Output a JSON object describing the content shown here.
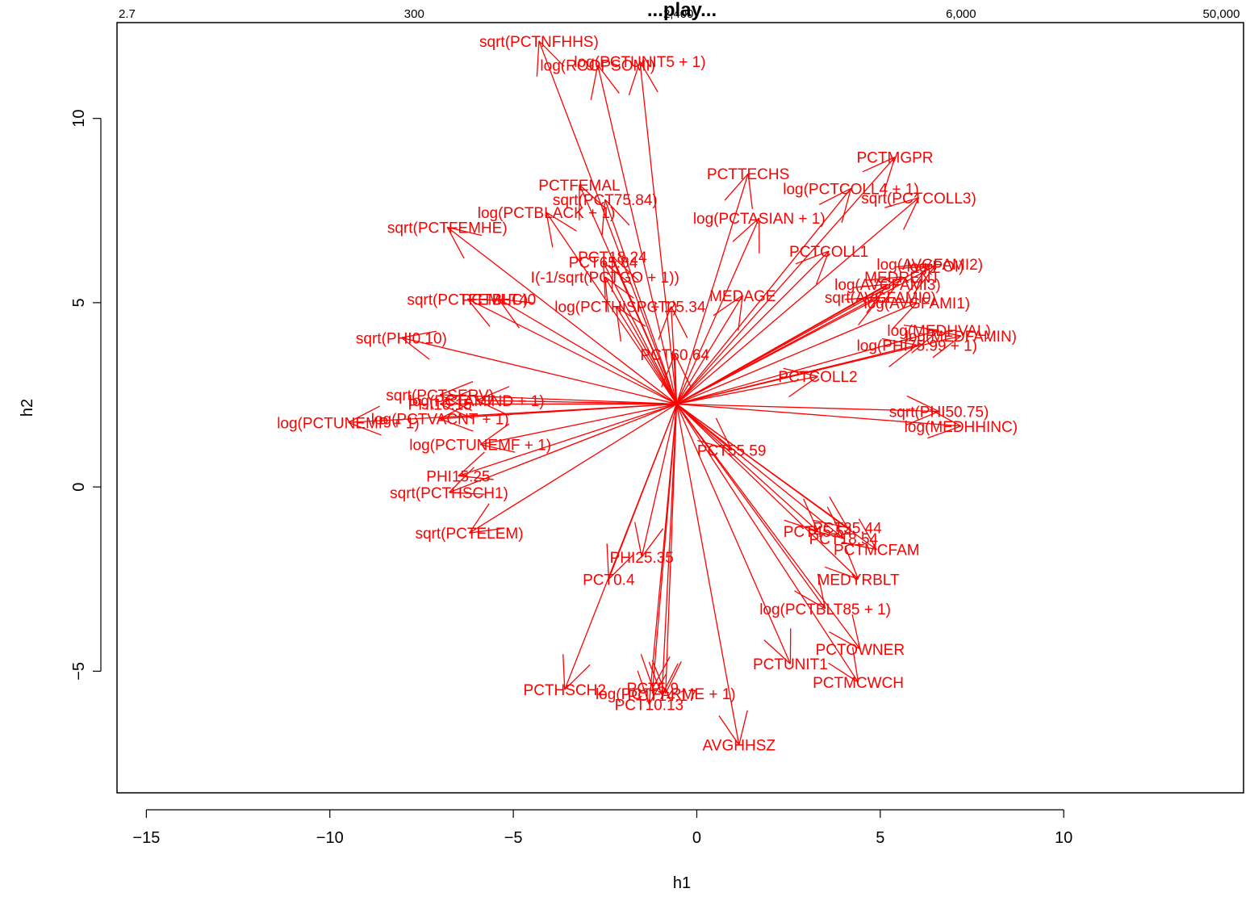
{
  "chart_data": {
    "type": "biplot",
    "title": "...play...",
    "xlabel": "h1",
    "ylabel": "h2",
    "xlim": [
      -15.8,
      14.9
    ],
    "ylim": [
      -8.3,
      12.6
    ],
    "x_ticks": [
      -15,
      -10,
      -5,
      0,
      5,
      10
    ],
    "y_ticks": [
      -5,
      0,
      5,
      10
    ],
    "top_ticks": [
      {
        "label": "2.7",
        "x": -15.8
      },
      {
        "label": "300",
        "x": -7.7
      },
      {
        "label": "2,400",
        "x": -0.5
      },
      {
        "label": "6,000",
        "x": 7.2
      },
      {
        "label": "50,000",
        "x": 14.8
      }
    ],
    "origin": [
      -0.55,
      2.25
    ],
    "color": "#ff0000",
    "vectors": [
      {
        "label": "sqrt(PCTNFHHS)",
        "x": -4.3,
        "y": 12.1
      },
      {
        "label": "log(PCTUNIT5 + 1)",
        "x": -1.55,
        "y": 11.55
      },
      {
        "label": "log(ROOPSOMI)",
        "x": -2.7,
        "y": 11.45
      },
      {
        "label": "PCTMGPR",
        "x": 5.4,
        "y": 8.95
      },
      {
        "label": "PCTTECHS",
        "x": 1.4,
        "y": 8.5
      },
      {
        "label": "log(PCTCOLL4 + 1)",
        "x": 4.2,
        "y": 8.1
      },
      {
        "label": "sqrt(PCTCOLL3)",
        "x": 6.05,
        "y": 7.85
      },
      {
        "label": "PCTFEMAL",
        "x": -3.2,
        "y": 8.2
      },
      {
        "label": "sqrt(PCT75.84)",
        "x": -2.5,
        "y": 7.8
      },
      {
        "label": "log(PCTBLACK + 1)",
        "x": -4.1,
        "y": 7.45
      },
      {
        "label": "log(PCTASIAN + 1)",
        "x": 1.7,
        "y": 7.3
      },
      {
        "label": "sqrt(PCTFEMHE)",
        "x": -6.8,
        "y": 7.05
      },
      {
        "label": "PCTCOLL1",
        "x": 3.6,
        "y": 6.4
      },
      {
        "label": "PCT18.24",
        "x": -2.3,
        "y": 6.25
      },
      {
        "label": "PCT65.84",
        "x": -2.55,
        "y": 6.1
      },
      {
        "label": "log(AVGFAMI2)",
        "x": 6.35,
        "y": 6.05
      },
      {
        "label": "log(POI)",
        "x": 6.5,
        "y": 6.0
      },
      {
        "label": "MEDRENT",
        "x": 5.6,
        "y": 5.7
      },
      {
        "label": "I(-1/sqrt(PCTGO + 1))",
        "x": -2.5,
        "y": 5.7
      },
      {
        "label": "log(AVGFAMI3)",
        "x": 5.2,
        "y": 5.5
      },
      {
        "label": "MEDAGE",
        "x": 1.25,
        "y": 5.2
      },
      {
        "label": "sqrt(PCTFEMHC)",
        "x": -6.25,
        "y": 5.1
      },
      {
        "label": "PCTBLT40",
        "x": -5.4,
        "y": 5.1
      },
      {
        "label": "sqrt(AVGFAMI0)",
        "x": 5.0,
        "y": 5.15
      },
      {
        "label": "log(AVGFAMI1)",
        "x": 6.0,
        "y": 5.0
      },
      {
        "label": "log(PCTHISP + 1)",
        "x": -2.2,
        "y": 4.9
      },
      {
        "label": "PCT25.34",
        "x": -0.7,
        "y": 4.9
      },
      {
        "label": "sqrt(PHI0.10)",
        "x": -8.05,
        "y": 4.05
      },
      {
        "label": "log(MEDHVAL)",
        "x": 6.6,
        "y": 4.25
      },
      {
        "label": "log(MEDFAMIN)",
        "x": 7.2,
        "y": 4.1
      },
      {
        "label": "log(PHI75.99 + 1)",
        "x": 6.0,
        "y": 3.85
      },
      {
        "label": "PCT60.64",
        "x": -0.6,
        "y": 3.6
      },
      {
        "label": "PCTCOLL2",
        "x": 3.3,
        "y": 3.0
      },
      {
        "label": "sqrt(PCTSERV)",
        "x": -7.0,
        "y": 2.5
      },
      {
        "label": "log(PCTAMIND + 1)",
        "x": -6.0,
        "y": 2.35
      },
      {
        "label": "PHI10.15",
        "x": -7.0,
        "y": 2.25
      },
      {
        "label": "sqrt(PHI50.75)",
        "x": 6.6,
        "y": 2.05
      },
      {
        "label": "log(PCTVACNT + 1)",
        "x": -7.0,
        "y": 1.85
      },
      {
        "label": "log(PCTUNEMP + 1)",
        "x": -9.5,
        "y": 1.75
      },
      {
        "label": "log(MEDHHINC)",
        "x": 7.2,
        "y": 1.65
      },
      {
        "label": "log(PCTUNEMF + 1)",
        "x": -5.9,
        "y": 1.15
      },
      {
        "label": "PCT55.59",
        "x": 0.95,
        "y": 1.0
      },
      {
        "label": "PHI15.25",
        "x": -6.5,
        "y": 0.3
      },
      {
        "label": "sqrt(PCTHSCH1)",
        "x": -6.75,
        "y": -0.15
      },
      {
        "label": "PCT35.44",
        "x": 4.1,
        "y": -1.1
      },
      {
        "label": "PCT45.54",
        "x": 3.3,
        "y": -1.2
      },
      {
        "label": "PCT18.54",
        "x": 4.0,
        "y": -1.4
      },
      {
        "label": "sqrt(PCTELEM)",
        "x": -6.2,
        "y": -1.25
      },
      {
        "label": "PCTMCFAM",
        "x": 4.9,
        "y": -1.7
      },
      {
        "label": "PHI25.35",
        "x": -1.5,
        "y": -1.9
      },
      {
        "label": "MEDYRBLT",
        "x": 4.4,
        "y": -2.5
      },
      {
        "label": "PCT0.4",
        "x": -2.4,
        "y": -2.5
      },
      {
        "label": "log(PCTBLT85 + 1)",
        "x": 3.5,
        "y": -3.3
      },
      {
        "label": "PCTOWNER",
        "x": 4.45,
        "y": -4.4
      },
      {
        "label": "PCTUNIT1",
        "x": 2.55,
        "y": -4.8
      },
      {
        "label": "PCTMCWCH",
        "x": 4.4,
        "y": -5.3
      },
      {
        "label": "PCT5.9",
        "x": -1.2,
        "y": -5.45
      },
      {
        "label": "log(PCTFARME + 1)",
        "x": -0.85,
        "y": -5.6
      },
      {
        "label": "PCT14.17",
        "x": -0.95,
        "y": -5.65
      },
      {
        "label": "PCTHSCH2",
        "x": -3.6,
        "y": -5.5
      },
      {
        "label": "PCT10.13",
        "x": -1.3,
        "y": -5.9
      },
      {
        "label": "AVGHHSZ",
        "x": 1.15,
        "y": -7.0
      }
    ]
  }
}
